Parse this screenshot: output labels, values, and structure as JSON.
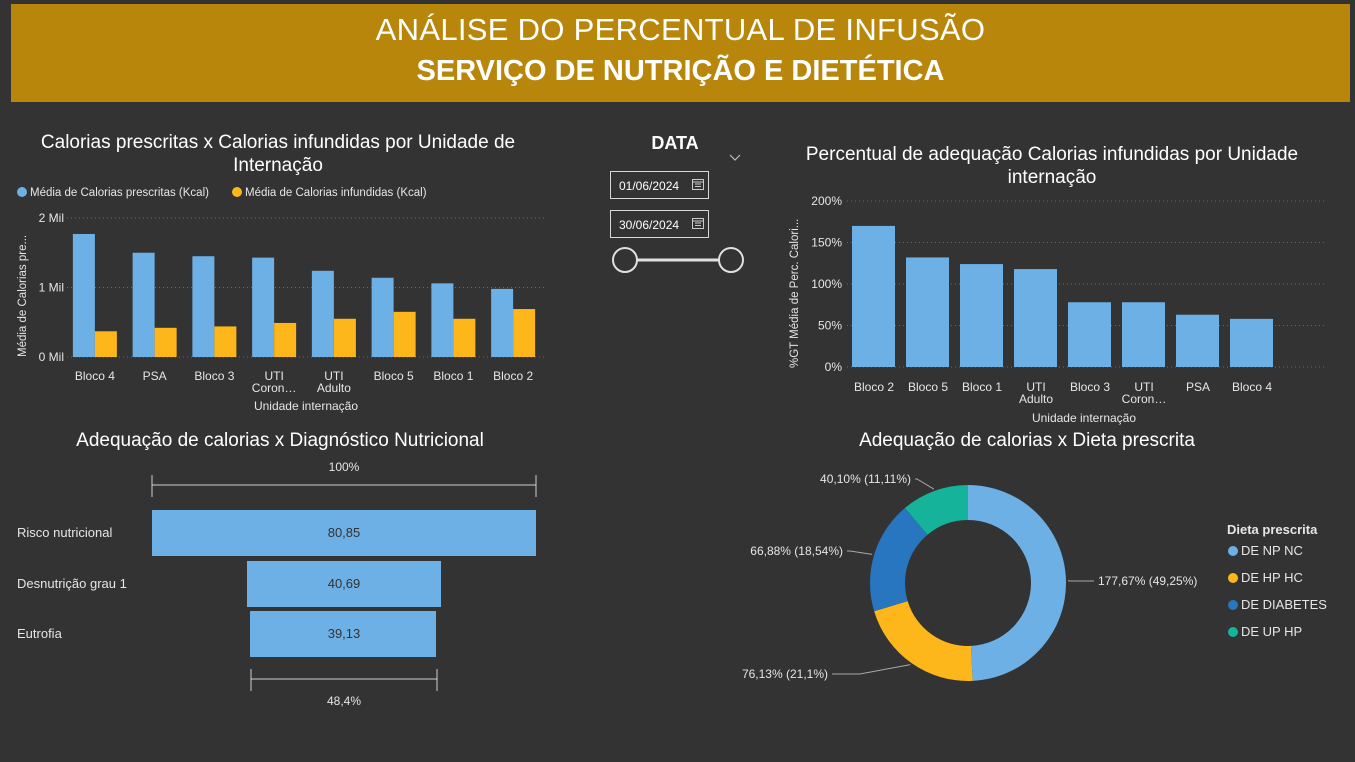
{
  "header": {
    "title_line1": "ANÁLISE DO PERCENTUAL DE INFUSÃO",
    "title_line2": "SERVIÇO DE NUTRIÇÃO E DIETÉTICA"
  },
  "colors": {
    "header_bg": "#b8860b",
    "background": "#333333",
    "light_blue": "#6cb0e5",
    "yellow": "#fdb71a",
    "dark_blue": "#2776bf",
    "teal": "#14b39a"
  },
  "date_filter": {
    "title": "DATA",
    "start": "01/06/2024",
    "end": "30/06/2024",
    "icon": "calendar-icon",
    "dropdown_icon": "chevron-down-icon"
  },
  "chart_data": [
    {
      "id": "calorias",
      "type": "bar",
      "title": "Calorias prescritas x Calorias infundidas por Unidade de Internação",
      "xlabel": "Unidade internação",
      "ylabel": "Média de Calorias pre...",
      "categories": [
        "Bloco 4",
        "PSA",
        "Bloco 3",
        "UTI Coron…",
        "UTI Adulto",
        "Bloco 5",
        "Bloco 1",
        "Bloco 2"
      ],
      "series": [
        {
          "name": "Média de Calorias prescritas (Kcal)",
          "color": "#6cb0e5",
          "values": [
            1770,
            1500,
            1450,
            1430,
            1240,
            1140,
            1060,
            980
          ]
        },
        {
          "name": "Média de Calorias infundidas (Kcal)",
          "color": "#fdb71a",
          "values": [
            370,
            420,
            440,
            490,
            550,
            650,
            550,
            690
          ]
        }
      ],
      "yticks": [
        {
          "value": 0,
          "label": "0 Mil"
        },
        {
          "value": 1000,
          "label": "1 Mil"
        },
        {
          "value": 2000,
          "label": "2 Mil"
        }
      ],
      "ylim": [
        0,
        2000
      ],
      "grid": true,
      "legend_position": "top-left"
    },
    {
      "id": "percentual",
      "type": "bar",
      "title": "Percentual de adequação Calorias infundidas por Unidade internação",
      "xlabel": "Unidade internação",
      "ylabel": "%GT Média de Perc. Calori...",
      "categories": [
        "Bloco 2",
        "Bloco 5",
        "Bloco 1",
        "UTI Adulto",
        "Bloco 3",
        "UTI Coron…",
        "PSA",
        "Bloco 4"
      ],
      "series": [
        {
          "color": "#6cb0e5",
          "values": [
            170,
            132,
            124,
            118,
            78,
            78,
            63,
            58
          ]
        }
      ],
      "yticks": [
        {
          "value": 0,
          "label": "0%"
        },
        {
          "value": 50,
          "label": "50%"
        },
        {
          "value": 100,
          "label": "100%"
        },
        {
          "value": 150,
          "label": "150%"
        },
        {
          "value": 200,
          "label": "200%"
        }
      ],
      "ylim": [
        0,
        200
      ],
      "grid": true
    },
    {
      "id": "funil",
      "type": "bar",
      "title": "Adequação de calorias x Diagnóstico Nutricional",
      "categories": [
        "Risco nutricional",
        "Desnutrição grau 1",
        "Eutrofia"
      ],
      "values": [
        80.85,
        40.69,
        39.13
      ],
      "value_labels": [
        "80,85",
        "40,69",
        "39,13"
      ],
      "top_label": "100%",
      "bottom_label": "48,4%",
      "color": "#6cb0e5"
    },
    {
      "id": "dieta",
      "type": "pie",
      "title": "Adequação de calorias x Dieta prescrita",
      "legend_title": "Dieta prescrita",
      "legend_position": "right",
      "slices": [
        {
          "name": "DE NP NC",
          "value": 49.25,
          "label": "177,67% (49,25%)",
          "color": "#6cb0e5"
        },
        {
          "name": "DE HP HC",
          "value": 21.1,
          "label": "76,13% (21,1%)",
          "color": "#fdb71a"
        },
        {
          "name": "DE DIABETES",
          "value": 18.54,
          "label": "66,88% (18,54%)",
          "color": "#2776bf"
        },
        {
          "name": "DE UP HP",
          "value": 11.11,
          "label": "40,10% (11,11%)",
          "color": "#14b39a"
        }
      ]
    }
  ]
}
